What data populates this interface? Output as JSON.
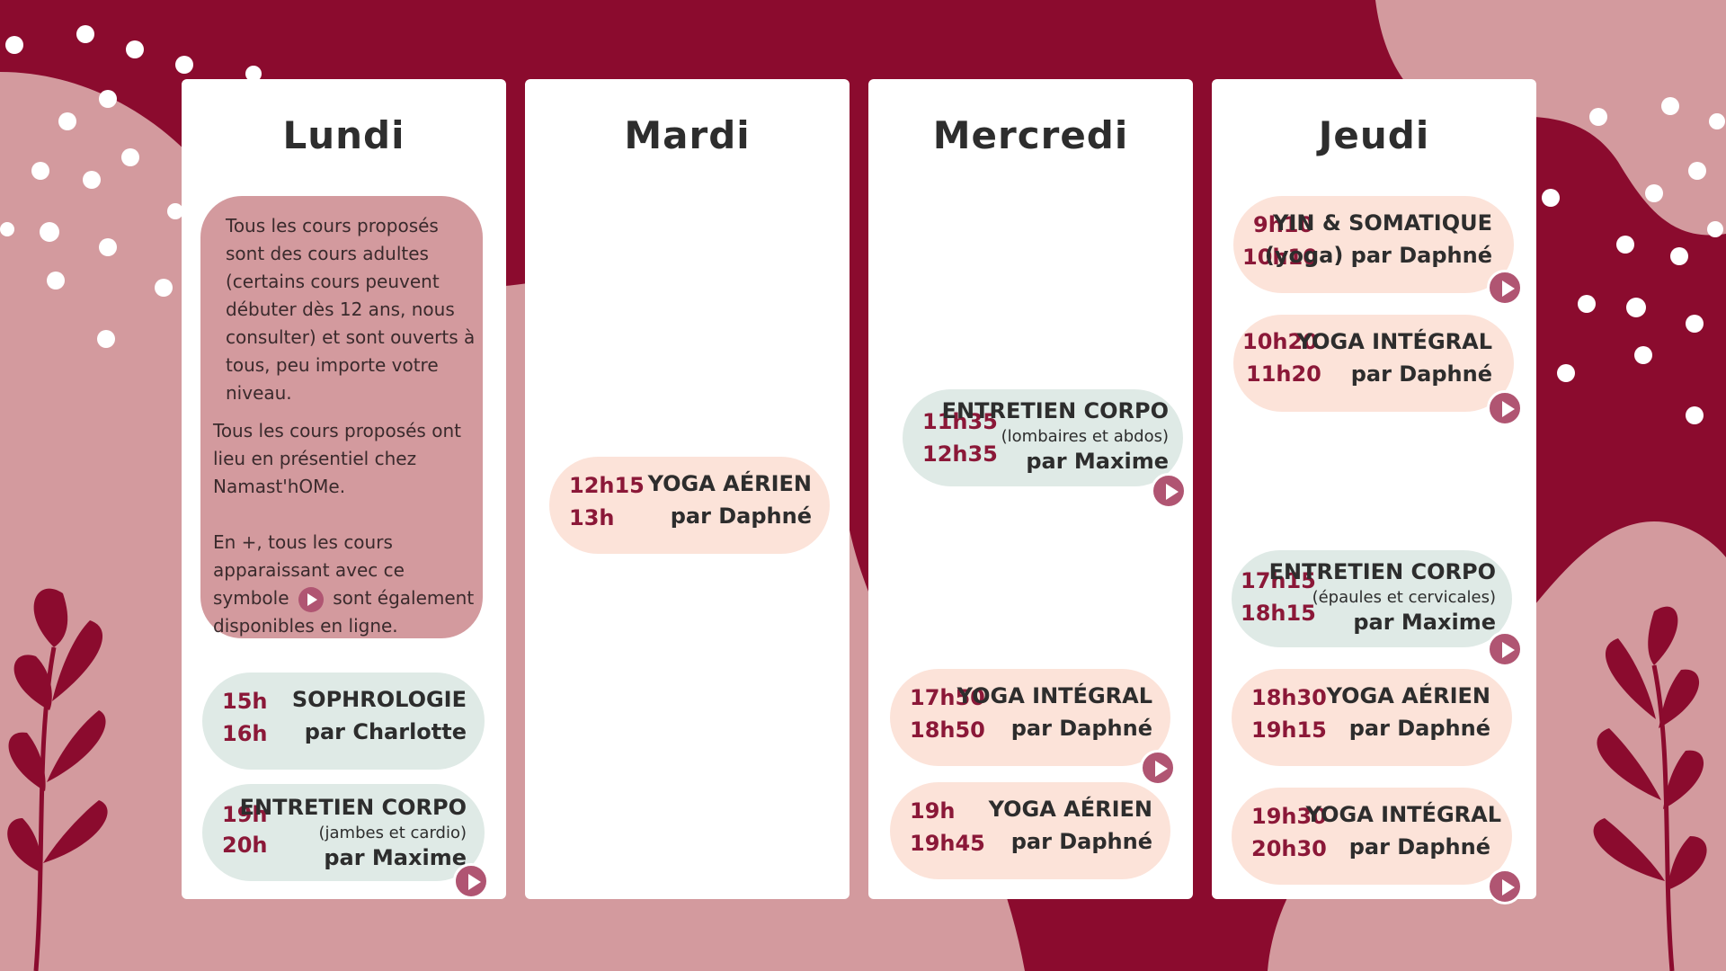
{
  "colors": {
    "background": "#8b0b2e",
    "blob": "#d39a9e",
    "accent": "#8b1838",
    "play": "#b05572"
  },
  "days": [
    "Lundi",
    "Mardi",
    "Mercredi",
    "Jeudi"
  ],
  "info": {
    "p1": "Tous les cours proposés sont des cours adultes (certains cours peuvent débuter dès 12 ans, nous consulter) et sont ouverts à tous, peu importe votre niveau.",
    "p2": "Tous les cours proposés ont lieu en présentiel chez Namast'hOMe.",
    "p3a": "En +, tous les cours apparaissant avec ce symbole",
    "p3b": "sont également disponibles en ligne."
  },
  "lundi": {
    "c1": {
      "start": "15h",
      "end": "16h",
      "title": "SOPHROLOGIE",
      "by": "par Charlotte",
      "online": false
    },
    "c2": {
      "start": "19h",
      "end": "20h",
      "title": "ENTRETIEN CORPO",
      "sub": "(jambes et cardio)",
      "by": "par Maxime",
      "online": true
    }
  },
  "mardi": {
    "c1": {
      "start": "12h15",
      "end": "13h",
      "title": "YOGA AÉRIEN",
      "by": "par Daphné",
      "online": false
    }
  },
  "mercredi": {
    "c1": {
      "start": "11h35",
      "end": "12h35",
      "title": "ENTRETIEN CORPO",
      "sub": "(lombaires et abdos)",
      "by": "par Maxime",
      "online": true
    },
    "c2": {
      "start": "17h50",
      "end": "18h50",
      "title": "YOGA INTÉGRAL",
      "by": "par Daphné",
      "online": true
    },
    "c3": {
      "start": "19h",
      "end": "19h45",
      "title": "YOGA AÉRIEN",
      "by": "par Daphné",
      "online": false
    }
  },
  "jeudi": {
    "c1": {
      "start": "9h10",
      "end": "10h10",
      "title": "YIN & SOMATIQUE",
      "by": "(yoga) par Daphné",
      "online": true
    },
    "c2": {
      "start": "10h20",
      "end": "11h20",
      "title": "YOGA INTÉGRAL",
      "by": "par Daphné",
      "online": true
    },
    "c3": {
      "start": "17h15",
      "end": "18h15",
      "title": "ENTRETIEN CORPO",
      "sub": "(épaules et cervicales)",
      "by": "par Maxime",
      "online": true
    },
    "c4": {
      "start": "18h30",
      "end": "19h15",
      "title": "YOGA AÉRIEN",
      "by": "par Daphné",
      "online": false
    },
    "c5": {
      "start": "19h30",
      "end": "20h30",
      "title": "YOGA INTÉGRAL",
      "by": "par Daphné",
      "online": true
    }
  }
}
